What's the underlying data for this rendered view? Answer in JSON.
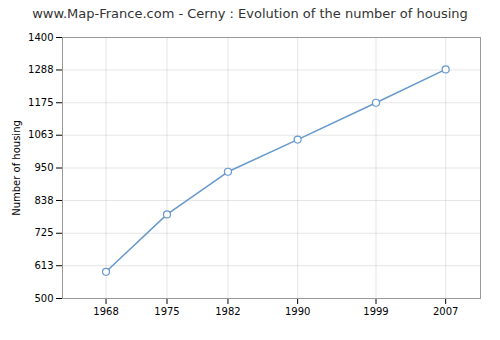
{
  "chart_data": {
    "type": "line",
    "title": "www.Map-France.com - Cerny : Evolution of the number of housing",
    "ylabel": "Number of housing",
    "x": [
      1968,
      1975,
      1982,
      1990,
      1999,
      2007
    ],
    "values": [
      592,
      790,
      937,
      1048,
      1175,
      1290
    ],
    "color": "#6699cc",
    "marker": "circle",
    "xlim": [
      1963,
      2011
    ],
    "xticks": [
      1968,
      1975,
      1982,
      1990,
      1999,
      2007
    ],
    "ylim": [
      500,
      1400
    ],
    "yticks": [
      500,
      613,
      725,
      838,
      950,
      1063,
      1175,
      1288,
      1400
    ],
    "grid": true
  }
}
